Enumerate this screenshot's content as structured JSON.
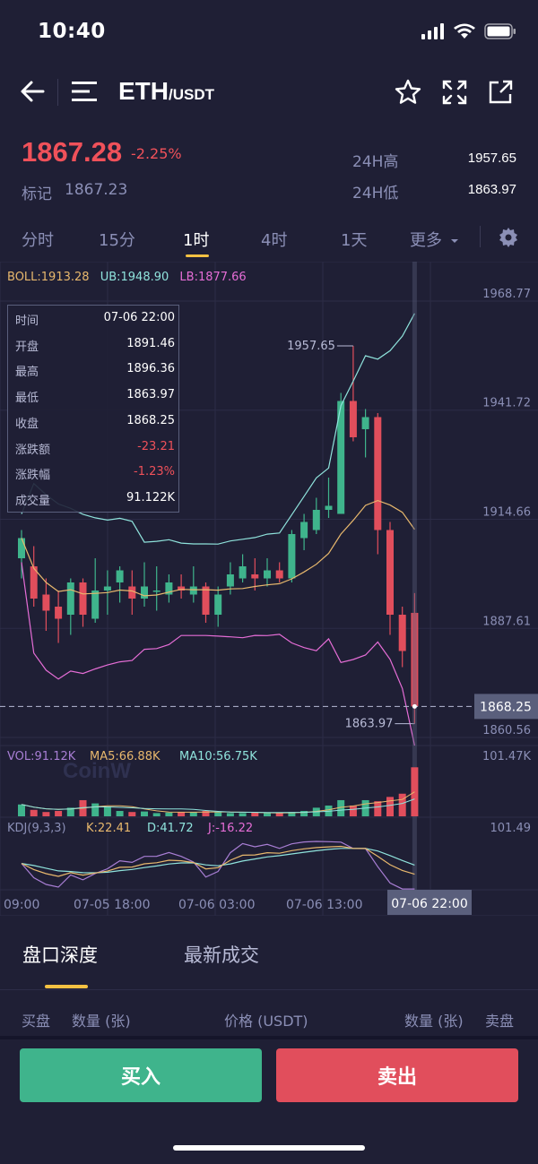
{
  "status_bar": {
    "time": "10:40"
  },
  "header": {
    "base": "ETH",
    "quote": "/USDT"
  },
  "ticker": {
    "price": "1867.28",
    "change": "-2.25%",
    "mark_label": "标记",
    "mark_value": "1867.23",
    "high_label": "24H高",
    "high_value": "1957.65",
    "low_label": "24H低",
    "low_value": "1863.97"
  },
  "tabs": [
    {
      "label": "分时"
    },
    {
      "label": "15分"
    },
    {
      "label": "1时"
    },
    {
      "label": "4时"
    },
    {
      "label": "1天"
    },
    {
      "label": "更多"
    }
  ],
  "indicators": {
    "boll": "BOLL:1913.28",
    "ub": "UB:1948.90",
    "lb": "LB:1877.66",
    "vol": "VOL:91.12K",
    "ma5": "MA5:66.88K",
    "ma10": "MA10:56.75K",
    "kdj": "KDJ(9,3,3)",
    "k": "K:22.41",
    "d": "D:41.72",
    "j": "J:-16.22"
  },
  "price_axis": [
    "1968.77",
    "1941.72",
    "1914.66",
    "1887.61",
    "1860.56"
  ],
  "current_price_tag": "1868.25",
  "vol_axis_max": "101.47K",
  "kdj_axis_max": "101.49",
  "annotations": {
    "high": "1957.65",
    "low": "1863.97"
  },
  "time_axis": [
    "09:00",
    "07-05 18:00",
    "07-06 03:00",
    "07-06 13:00"
  ],
  "time_cursor": "07-06 22:00",
  "watermark": "CoinW",
  "info_box": [
    {
      "k": "时间",
      "v": "07-06 22:00",
      "neg": false
    },
    {
      "k": "开盘",
      "v": "1891.46",
      "neg": false
    },
    {
      "k": "最高",
      "v": "1896.36",
      "neg": false
    },
    {
      "k": "最低",
      "v": "1863.97",
      "neg": false
    },
    {
      "k": "收盘",
      "v": "1868.25",
      "neg": false
    },
    {
      "k": "涨跌额",
      "v": "-23.21",
      "neg": true
    },
    {
      "k": "涨跌幅",
      "v": "-1.23%",
      "neg": true
    },
    {
      "k": "成交量",
      "v": "91.122K",
      "neg": false
    }
  ],
  "bottom_tabs": {
    "depth": "盘口深度",
    "trades": "最新成交"
  },
  "orderbook_header": {
    "buy": "买盘",
    "qty_left": "数量 (张)",
    "price": "价格 (USDT)",
    "qty_right": "数量 (张)",
    "sell": "卖盘"
  },
  "actions": {
    "buy": "买入",
    "sell": "卖出"
  },
  "colors": {
    "up": "#3fb48c",
    "down": "#e14e5c",
    "accent": "#f4c142",
    "background": "#1f1f35"
  },
  "candles": [
    {
      "o": 1905,
      "c": 1910,
      "h": 1912,
      "l": 1900
    },
    {
      "o": 1903,
      "c": 1895,
      "h": 1908,
      "l": 1893
    },
    {
      "o": 1896,
      "c": 1892,
      "h": 1900,
      "l": 1887
    },
    {
      "o": 1893,
      "c": 1890,
      "h": 1897,
      "l": 1884
    },
    {
      "o": 1891,
      "c": 1899,
      "h": 1900,
      "l": 1886
    },
    {
      "o": 1899,
      "c": 1891,
      "h": 1900,
      "l": 1888
    },
    {
      "o": 1890,
      "c": 1897,
      "h": 1905,
      "l": 1889
    },
    {
      "o": 1897,
      "c": 1898,
      "h": 1902,
      "l": 1891
    },
    {
      "o": 1899,
      "c": 1902,
      "h": 1903,
      "l": 1894
    },
    {
      "o": 1898,
      "c": 1895,
      "h": 1902,
      "l": 1891
    },
    {
      "o": 1895,
      "c": 1898,
      "h": 1904,
      "l": 1893
    },
    {
      "o": 1897,
      "c": 1897,
      "h": 1903,
      "l": 1892
    },
    {
      "o": 1896,
      "c": 1899,
      "h": 1901,
      "l": 1894
    },
    {
      "o": 1898,
      "c": 1897,
      "h": 1901,
      "l": 1895
    },
    {
      "o": 1896,
      "c": 1898,
      "h": 1903,
      "l": 1894
    },
    {
      "o": 1898,
      "c": 1891,
      "h": 1899,
      "l": 1889
    },
    {
      "o": 1891,
      "c": 1896,
      "h": 1898,
      "l": 1888
    },
    {
      "o": 1898,
      "c": 1901,
      "h": 1904,
      "l": 1896
    },
    {
      "o": 1900,
      "c": 1903,
      "h": 1906,
      "l": 1899
    },
    {
      "o": 1901,
      "c": 1900,
      "h": 1905,
      "l": 1897
    },
    {
      "o": 1900,
      "c": 1902,
      "h": 1905,
      "l": 1898
    },
    {
      "o": 1902,
      "c": 1900,
      "h": 1904,
      "l": 1899
    },
    {
      "o": 1900,
      "c": 1911,
      "h": 1912,
      "l": 1899
    },
    {
      "o": 1910,
      "c": 1914,
      "h": 1916,
      "l": 1907
    },
    {
      "o": 1912,
      "c": 1917,
      "h": 1920,
      "l": 1911
    },
    {
      "o": 1917,
      "c": 1918,
      "h": 1925,
      "l": 1915
    },
    {
      "o": 1916,
      "c": 1944,
      "h": 1946,
      "l": 1916
    },
    {
      "o": 1944,
      "c": 1935,
      "h": 1957.65,
      "l": 1934
    },
    {
      "o": 1937,
      "c": 1940,
      "h": 1942,
      "l": 1930
    },
    {
      "o": 1940,
      "c": 1912,
      "h": 1941,
      "l": 1906
    },
    {
      "o": 1912,
      "c": 1891,
      "h": 1914,
      "l": 1886
    },
    {
      "o": 1891,
      "c": 1882,
      "h": 1893,
      "l": 1878
    },
    {
      "o": 1891.46,
      "c": 1868.25,
      "h": 1896.36,
      "l": 1863.97
    }
  ],
  "volumes": [
    22,
    12,
    8,
    10,
    16,
    30,
    24,
    18,
    10,
    8,
    9,
    6,
    7,
    8,
    8,
    10,
    8,
    6,
    6,
    7,
    6,
    6,
    8,
    10,
    16,
    20,
    30,
    20,
    30,
    28,
    36,
    42,
    91
  ]
}
